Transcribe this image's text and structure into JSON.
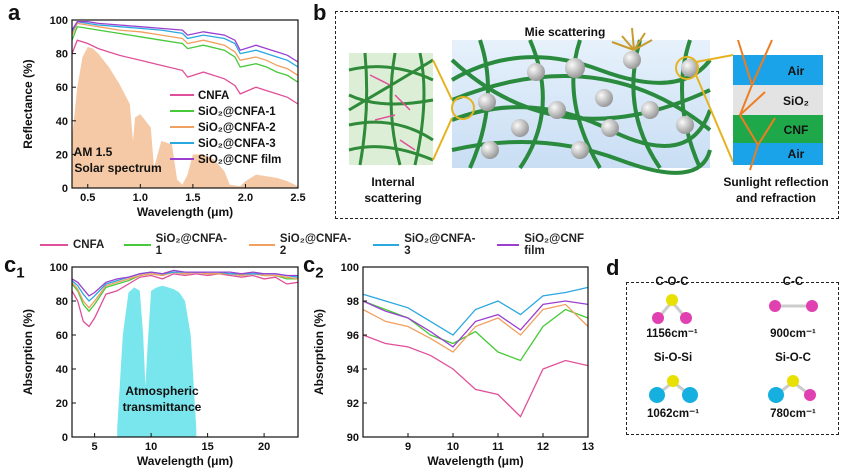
{
  "colors": {
    "CNFA": "#e0509a",
    "SiO2@CNFA-1": "#48c93a",
    "SiO2@CNFA-2": "#f0a060",
    "SiO2@CNFA-3": "#2aa8e0",
    "SiO2@CNF film": "#9b3fd0",
    "solar": "#f5c9a5",
    "atmos": "#79e6ee"
  },
  "panel_labels": {
    "a": "a",
    "b": "b",
    "c1_main": "c",
    "c1_sub": "1",
    "c2_main": "c",
    "c2_sub": "2",
    "d": "d"
  },
  "panel_a": {
    "legend": [
      "CNFA",
      "SiO₂@CNFA-1",
      "SiO₂@CNFA-2",
      "SiO₂@CNFA-3",
      "SiO₂@CNF film"
    ],
    "solar_label_1": "AM 1.5",
    "solar_label_2": "Solar spectrum"
  },
  "panel_b": {
    "mie": "Mie scattering",
    "internal_1": "Internal",
    "internal_2": "scattering",
    "sunlight_1": "Sunlight reflection",
    "sunlight_2": "and refraction",
    "layers": [
      "Air",
      "SiO₂",
      "CNF",
      "Air"
    ]
  },
  "shared_legend": [
    "CNFA",
    "SiO₂@CNFA-1",
    "SiO₂@CNFA-2",
    "SiO₂@CNFA-3",
    "SiO₂@CNF film"
  ],
  "panel_c1": {
    "atmos_1": "Atmospheric",
    "atmos_2": "transmittance"
  },
  "panel_d": {
    "bonds": [
      {
        "name": "C-O-C",
        "wavenumber": "1156cm⁻¹"
      },
      {
        "name": "C-C",
        "wavenumber": "900cm⁻¹"
      },
      {
        "name": "Si-O-Si",
        "wavenumber": "1062cm⁻¹"
      },
      {
        "name": "Si-O-C",
        "wavenumber": "780cm⁻¹"
      }
    ]
  },
  "chart_data": [
    {
      "id": "a",
      "type": "line",
      "xlabel": "Wavelength (μm)",
      "ylabel": "Reflectance (%)",
      "xlim": [
        0.35,
        2.5
      ],
      "ylim": [
        0,
        100
      ],
      "xticks": [
        0.5,
        1.0,
        1.5,
        2.0,
        2.5
      ],
      "yticks": [
        0,
        20,
        40,
        60,
        80,
        100
      ],
      "x": [
        0.35,
        0.4,
        0.5,
        0.6,
        0.8,
        1.0,
        1.2,
        1.4,
        1.45,
        1.6,
        1.8,
        1.9,
        1.95,
        2.1,
        2.2,
        2.3,
        2.4,
        2.5
      ],
      "series": [
        {
          "name": "CNFA",
          "values": [
            80,
            88,
            86,
            83,
            79,
            76,
            73,
            70,
            66,
            69,
            65,
            61,
            56,
            60,
            58,
            56,
            54,
            50
          ]
        },
        {
          "name": "SiO₂@CNFA-1",
          "values": [
            88,
            96,
            95,
            94,
            92,
            90,
            88,
            86,
            83,
            85,
            82,
            78,
            72,
            74,
            72,
            69,
            67,
            63
          ]
        },
        {
          "name": "SiO₂@CNFA-2",
          "values": [
            91,
            98,
            97,
            96,
            94,
            93,
            91,
            89,
            86,
            88,
            85,
            81,
            76,
            78,
            76,
            73,
            71,
            67
          ]
        },
        {
          "name": "SiO₂@CNFA-3",
          "values": [
            93,
            99,
            98,
            97,
            96,
            95,
            94,
            92,
            89,
            91,
            89,
            86,
            80,
            82,
            80,
            78,
            76,
            72
          ]
        },
        {
          "name": "SiO₂@CNF film",
          "values": [
            94,
            99,
            99,
            98,
            97,
            96,
            95,
            94,
            91,
            93,
            91,
            88,
            82,
            85,
            83,
            81,
            79,
            75
          ]
        }
      ],
      "solar_spectrum": {
        "x": [
          0.35,
          0.4,
          0.45,
          0.5,
          0.55,
          0.6,
          0.7,
          0.8,
          0.9,
          0.93,
          0.95,
          1.0,
          1.1,
          1.13,
          1.2,
          1.3,
          1.35,
          1.4,
          1.45,
          1.5,
          1.6,
          1.7,
          1.8,
          1.85,
          1.95,
          2.0,
          2.1,
          2.2,
          2.3,
          2.4,
          2.5
        ],
        "values": [
          30,
          60,
          78,
          84,
          83,
          80,
          72,
          62,
          50,
          28,
          42,
          44,
          36,
          12,
          28,
          26,
          5,
          2,
          8,
          20,
          20,
          17,
          10,
          2,
          1,
          4,
          8,
          7,
          6,
          4,
          1
        ]
      }
    },
    {
      "id": "c1",
      "type": "line",
      "xlabel": "Wavelength (μm)",
      "ylabel": "Absorption (%)",
      "xlim": [
        3,
        23
      ],
      "ylim": [
        0,
        100
      ],
      "xticks": [
        5,
        10,
        15,
        20
      ],
      "yticks": [
        0,
        20,
        40,
        60,
        80,
        100
      ],
      "x": [
        3,
        3.5,
        4,
        4.5,
        5,
        6,
        7,
        8,
        9,
        10,
        11,
        12,
        13,
        14,
        15,
        16,
        17,
        18,
        19,
        20,
        21,
        22,
        23
      ],
      "series": [
        {
          "name": "CNFA",
          "values": [
            86,
            80,
            68,
            65,
            70,
            84,
            86,
            90,
            94,
            95,
            93,
            96,
            95,
            96,
            95,
            96,
            95,
            94,
            95,
            93,
            94,
            90,
            91
          ]
        },
        {
          "name": "SiO₂@CNFA-1",
          "values": [
            90,
            86,
            78,
            74,
            78,
            88,
            90,
            92,
            95,
            96,
            95,
            97,
            96,
            97,
            96,
            96,
            96,
            95,
            96,
            95,
            95,
            93,
            93
          ]
        },
        {
          "name": "SiO₂@CNFA-2",
          "values": [
            91,
            87,
            80,
            76,
            80,
            89,
            91,
            93,
            95,
            96,
            95,
            97,
            96,
            97,
            96,
            96,
            96,
            95,
            96,
            95,
            95,
            94,
            93
          ]
        },
        {
          "name": "SiO₂@CNFA-3",
          "values": [
            92,
            89,
            84,
            80,
            83,
            90,
            92,
            94,
            96,
            97,
            96,
            97,
            97,
            97,
            97,
            97,
            96,
            96,
            96,
            96,
            96,
            95,
            94
          ]
        },
        {
          "name": "SiO₂@CNF film",
          "values": [
            93,
            91,
            87,
            83,
            85,
            91,
            93,
            94,
            96,
            97,
            96,
            98,
            97,
            97,
            97,
            97,
            97,
            96,
            97,
            96,
            96,
            95,
            95
          ]
        }
      ],
      "atmospheric_transmittance": {
        "x": [
          7,
          7.5,
          8,
          8.5,
          9,
          9.3,
          9.5,
          9.7,
          10,
          10.5,
          11,
          11.5,
          12,
          12.5,
          13,
          13.5,
          14
        ],
        "values": [
          5,
          60,
          85,
          88,
          86,
          60,
          30,
          55,
          86,
          88,
          89,
          88,
          87,
          85,
          80,
          60,
          5
        ]
      }
    },
    {
      "id": "c2",
      "type": "line",
      "xlabel": "Wavelength (μm)",
      "ylabel": "Absorption (%)",
      "xlim": [
        8,
        13
      ],
      "ylim": [
        90,
        100
      ],
      "xticks": [
        9,
        10,
        11,
        12,
        13
      ],
      "yticks": [
        90,
        92,
        94,
        96,
        98,
        100
      ],
      "x": [
        8,
        8.5,
        9,
        9.5,
        10,
        10.5,
        11,
        11.5,
        12,
        12.5,
        13
      ],
      "series": [
        {
          "name": "CNFA",
          "values": [
            96.0,
            95.5,
            95.3,
            94.8,
            94.0,
            92.8,
            92.5,
            91.2,
            94.0,
            94.5,
            94.2
          ]
        },
        {
          "name": "SiO₂@CNFA-1",
          "values": [
            98.0,
            97.5,
            97.0,
            96.0,
            95.5,
            96.2,
            95.0,
            94.5,
            96.5,
            97.5,
            97.0
          ]
        },
        {
          "name": "SiO₂@CNFA-2",
          "values": [
            97.5,
            96.8,
            96.5,
            95.8,
            95.0,
            96.5,
            97.0,
            96.0,
            97.5,
            97.8,
            96.5
          ]
        },
        {
          "name": "SiO₂@CNFA-3",
          "values": [
            98.4,
            98.0,
            97.6,
            96.8,
            96.0,
            97.5,
            98.0,
            97.2,
            98.3,
            98.5,
            98.8
          ]
        },
        {
          "name": "SiO₂@CNF film",
          "values": [
            98.0,
            97.4,
            97.0,
            96.2,
            95.3,
            96.8,
            97.2,
            96.3,
            97.8,
            98.0,
            97.8
          ]
        }
      ]
    }
  ]
}
